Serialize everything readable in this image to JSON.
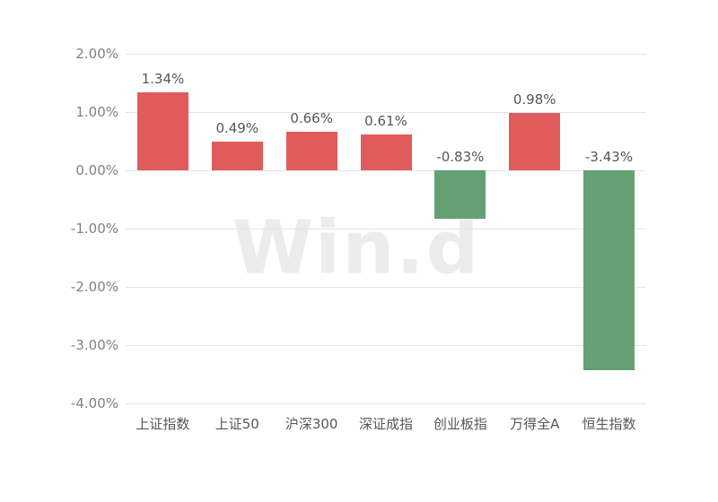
{
  "watermark": {
    "text": "Win.d"
  },
  "chart_data": {
    "type": "bar",
    "categories": [
      "上证指数",
      "上证50",
      "沪深300",
      "深证成指",
      "创业板指",
      "万得全A",
      "恒生指数"
    ],
    "values": [
      1.34,
      0.49,
      0.66,
      0.61,
      -0.83,
      0.98,
      -3.43
    ],
    "data_labels": [
      "1.34%",
      "0.49%",
      "0.66%",
      "0.61%",
      "-0.83%",
      "0.98%",
      "-3.43%"
    ],
    "title": "",
    "xlabel": "",
    "ylabel": "",
    "ylim": [
      -4.0,
      2.0
    ],
    "ytick_step": 1.0,
    "ytick_labels": [
      "2.00%",
      "1.00%",
      "0.00%",
      "-1.00%",
      "-2.00%",
      "-3.00%",
      "-4.00%"
    ],
    "grid": true,
    "legend": false,
    "colors": {
      "positive_bar": "#e05c5c",
      "negative_bar": "#64a073",
      "gridline": "#dde6f0",
      "ytick_label": "#818181",
      "data_label": "#565656",
      "category_label": "#565656",
      "watermark": "#ececec",
      "background": "#ffffff"
    }
  }
}
